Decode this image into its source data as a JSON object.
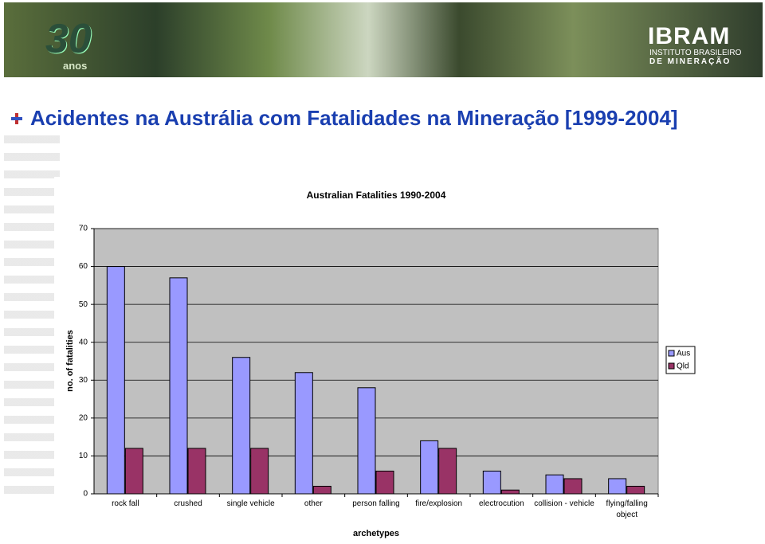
{
  "header": {
    "logo_number": "30",
    "logo_text": "anos",
    "org_name": "IBRAM",
    "org_line1": "INSTITUTO BRASILEIRO",
    "org_line2": "DE MINERAÇÃO"
  },
  "slide_title": "Acidentes na Austrália com Fatalidades na Mineração [1999-2004]",
  "chart_data": {
    "type": "bar",
    "title": "Australian Fatalities 1990-2004",
    "x_label": "archetypes",
    "y_label": "no. of fatalities",
    "categories": [
      "rock fall",
      "crushed",
      "single vehicle",
      "other",
      "person falling",
      "fire/explosion",
      "electrocution",
      "collision - vehicle",
      "flying/falling object"
    ],
    "series": [
      {
        "name": "Aus",
        "color": "#9999ff",
        "values": [
          60,
          57,
          36,
          32,
          28,
          14,
          6,
          5,
          4
        ]
      },
      {
        "name": "Qld",
        "color": "#993366",
        "values": [
          12,
          12,
          12,
          2,
          6,
          12,
          1,
          4,
          2
        ]
      }
    ],
    "ylim": [
      0,
      70
    ],
    "yticks": [
      0,
      10,
      20,
      30,
      40,
      50,
      60,
      70
    ],
    "grid": true,
    "legend": "right"
  }
}
